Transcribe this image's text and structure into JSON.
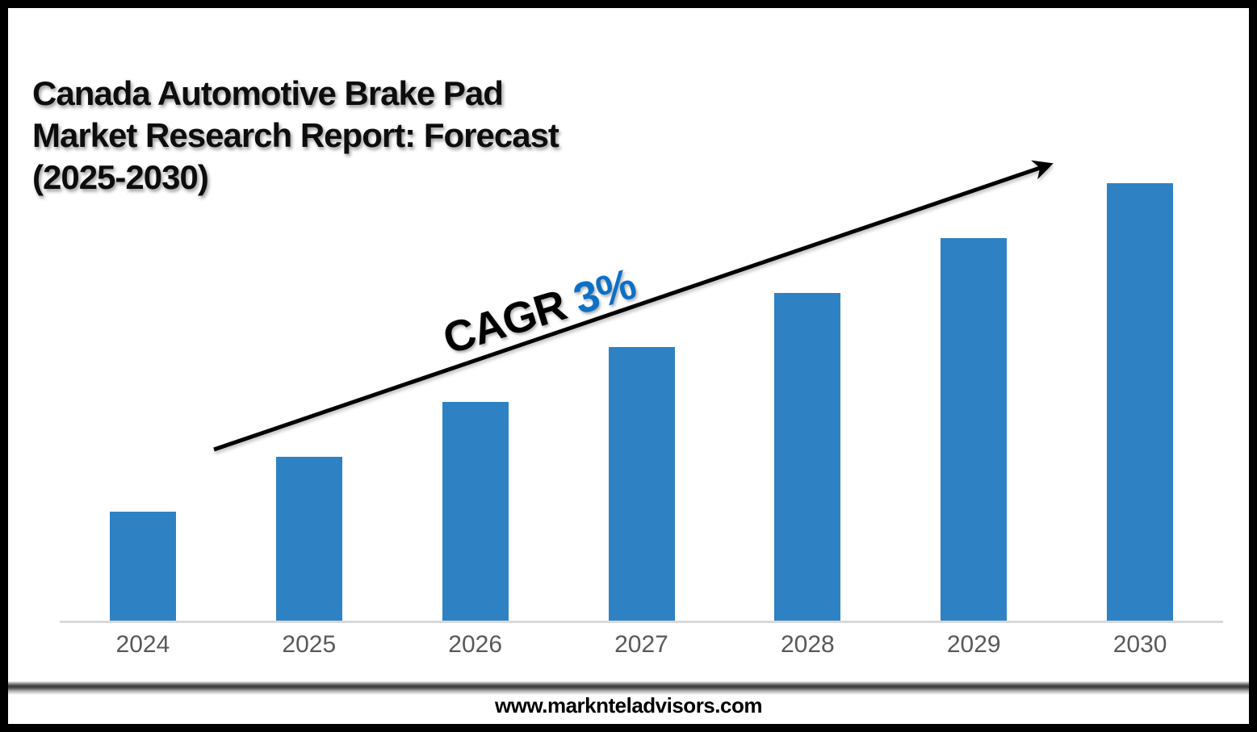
{
  "header": {
    "title_lines": [
      "Canada Automotive Brake Pad",
      "Market Research Report: Forecast",
      "(2025-2030)"
    ]
  },
  "annotation": {
    "label": "CAGR",
    "value": "3%"
  },
  "footer": {
    "website": "www.marknteladvisors.com"
  },
  "colors": {
    "bar": "#2E82C4",
    "cagr_value": "#0D70C7",
    "axis_line": "#D9D9D9",
    "tick_label": "#595959",
    "frame_border": "#000000",
    "arrow": "#000000"
  },
  "chart_data": {
    "type": "bar",
    "title": "Canada Automotive Brake Pad Market Research Report: Forecast (2025-2030)",
    "categories": [
      "2024",
      "2025",
      "2026",
      "2027",
      "2028",
      "2029",
      "2030"
    ],
    "values": [
      2,
      3,
      4,
      5,
      6,
      7,
      8
    ],
    "values_note": "relative bar heights; y-axis is not labeled in the source chart",
    "ylim": [
      0,
      8
    ],
    "xlabel": "",
    "ylabel": "",
    "grid": false,
    "legend": false,
    "bar_color": "#2E82C4",
    "annotations": [
      {
        "text": "CAGR 3%",
        "type": "trend-arrow-label"
      }
    ]
  }
}
